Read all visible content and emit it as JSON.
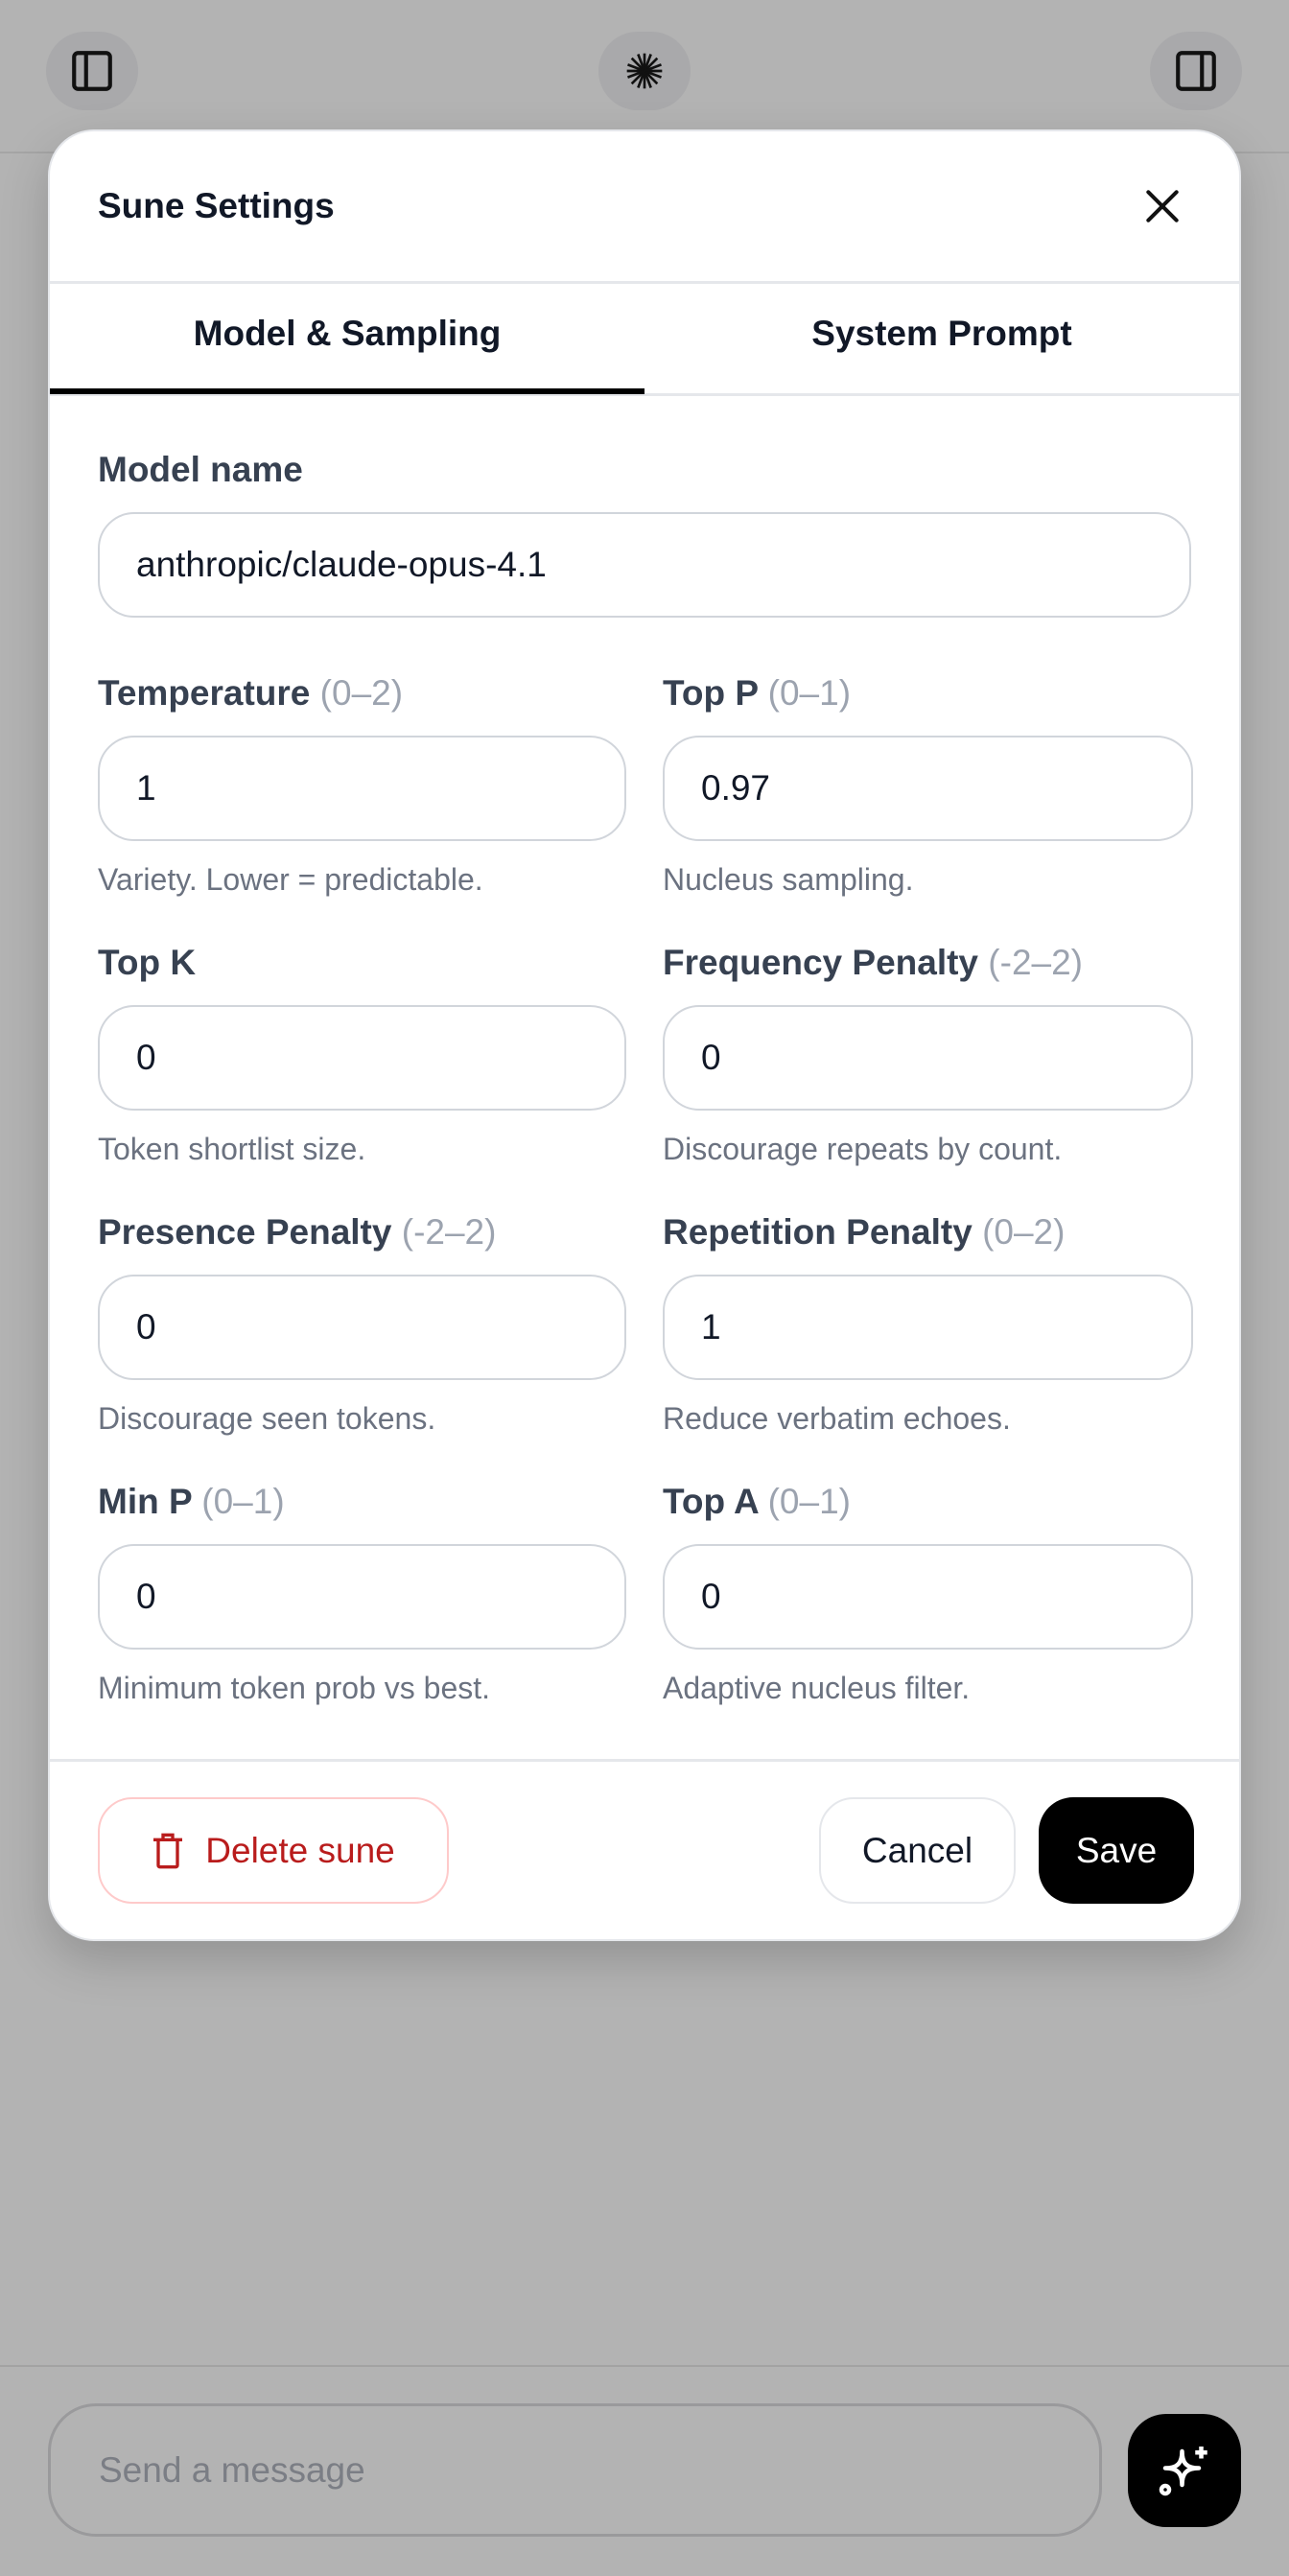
{
  "topbar": {
    "left_icon": "sidebar-left-icon",
    "center_icon": "starburst-icon",
    "right_icon": "sidebar-right-icon"
  },
  "modal": {
    "title": "Sune Settings",
    "close_icon": "close-icon",
    "tabs": [
      {
        "label": "Model & Sampling",
        "active": true
      },
      {
        "label": "System Prompt",
        "active": false
      }
    ],
    "model": {
      "label": "Model name",
      "value": "anthropic/claude-opus-4.1"
    },
    "fields": [
      {
        "label": "Temperature",
        "range": "(0–2)",
        "value": "1",
        "help": "Variety. Lower = predictable."
      },
      {
        "label": "Top P",
        "range": "(0–1)",
        "value": "0.97",
        "help": "Nucleus sampling."
      },
      {
        "label": "Top K",
        "range": "",
        "value": "0",
        "help": "Token shortlist size."
      },
      {
        "label": "Frequency Penalty",
        "range": "(-2–2)",
        "value": "0",
        "help": "Discourage repeats by count."
      },
      {
        "label": "Presence Penalty",
        "range": "(-2–2)",
        "value": "0",
        "help": "Discourage seen tokens."
      },
      {
        "label": "Repetition Penalty",
        "range": "(0–2)",
        "value": "1",
        "help": "Reduce verbatim echoes."
      },
      {
        "label": "Min P",
        "range": "(0–1)",
        "value": "0",
        "help": "Minimum token prob vs best."
      },
      {
        "label": "Top A",
        "range": "(0–1)",
        "value": "0",
        "help": "Adaptive nucleus filter."
      }
    ],
    "footer": {
      "delete_label": "Delete sune",
      "delete_icon": "trash-icon",
      "cancel_label": "Cancel",
      "save_label": "Save"
    }
  },
  "composer": {
    "placeholder": "Send a message",
    "send_icon": "sparkles-icon"
  },
  "colors": {
    "accent": "#000000",
    "danger": "#b91c1c",
    "backdrop": "#b3b3b3"
  }
}
